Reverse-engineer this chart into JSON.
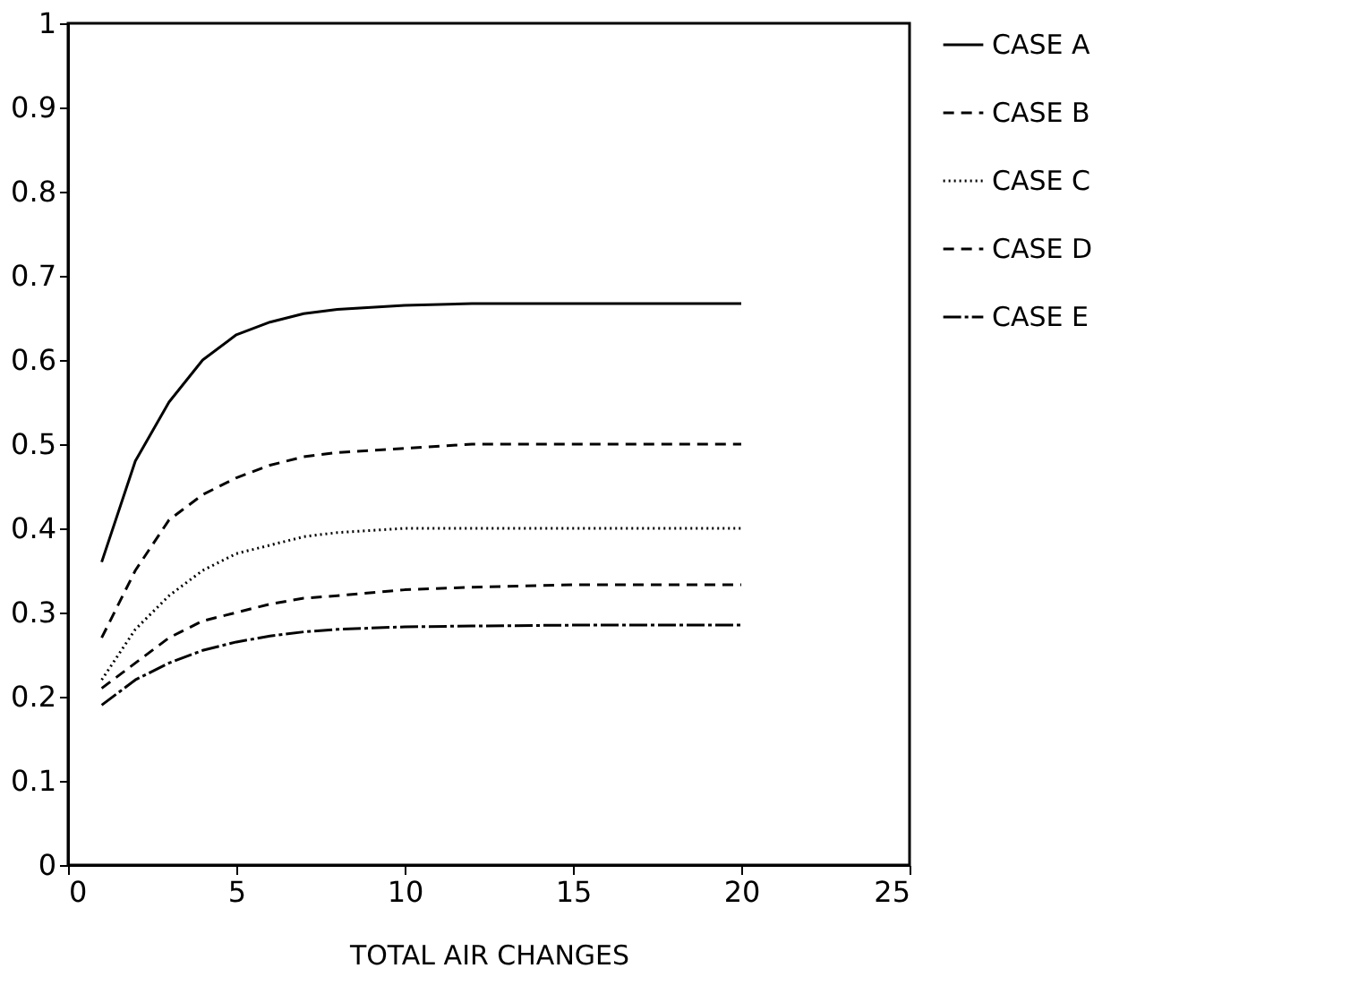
{
  "chart_data": {
    "type": "line",
    "xlabel": "TOTAL AIR CHANGES",
    "xlim": [
      0,
      25
    ],
    "xticks": [
      0,
      5,
      10,
      15,
      20,
      25
    ],
    "ylim": [
      0,
      1
    ],
    "yticks": [
      0,
      0.1,
      0.2,
      0.3,
      0.4,
      0.5,
      0.6,
      0.7,
      0.8,
      0.9,
      1
    ],
    "x": [
      1,
      2,
      3,
      4,
      5,
      6,
      7,
      8,
      10,
      12,
      15,
      20
    ],
    "series": [
      {
        "name": "CASE A",
        "color": "#000000",
        "line_style": "solid",
        "values": [
          0.36,
          0.48,
          0.55,
          0.6,
          0.63,
          0.645,
          0.655,
          0.66,
          0.665,
          0.667,
          0.667,
          0.667
        ]
      },
      {
        "name": "CASE B",
        "color": "#000000",
        "line_style": "dashed",
        "values": [
          0.27,
          0.35,
          0.41,
          0.44,
          0.46,
          0.475,
          0.485,
          0.49,
          0.495,
          0.5,
          0.5,
          0.5
        ]
      },
      {
        "name": "CASE C",
        "color": "#000000",
        "line_style": "dotted",
        "values": [
          0.22,
          0.28,
          0.32,
          0.35,
          0.37,
          0.38,
          0.39,
          0.395,
          0.4,
          0.4,
          0.4,
          0.4
        ]
      },
      {
        "name": "CASE D",
        "color": "#000000",
        "line_style": "dashed",
        "values": [
          0.21,
          0.24,
          0.27,
          0.29,
          0.3,
          0.31,
          0.317,
          0.32,
          0.327,
          0.33,
          0.333,
          0.333
        ]
      },
      {
        "name": "CASE E",
        "color": "#000000",
        "line_style": "dashdot",
        "values": [
          0.19,
          0.22,
          0.24,
          0.255,
          0.265,
          0.272,
          0.277,
          0.28,
          0.283,
          0.284,
          0.285,
          0.285
        ]
      }
    ],
    "legend": "right",
    "grid": false,
    "marker": "none"
  }
}
